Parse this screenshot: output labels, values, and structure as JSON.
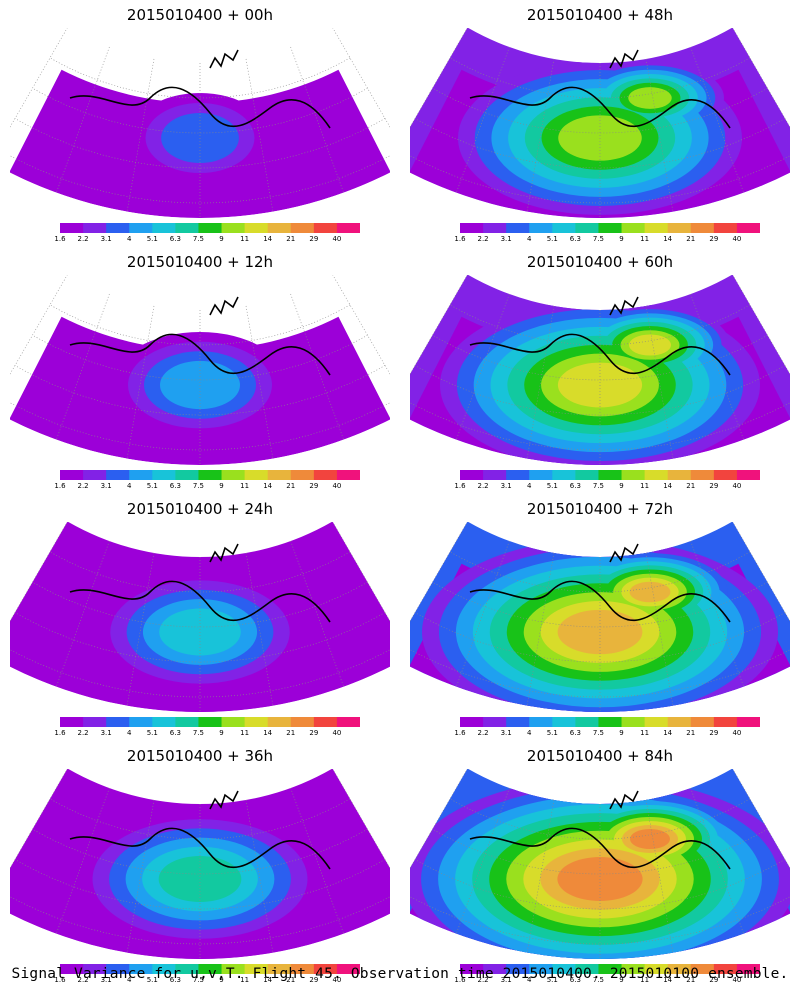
{
  "panels": [
    {
      "title": "2015010400 + 00h",
      "level": 0
    },
    {
      "title": "2015010400 + 48h",
      "level": 4
    },
    {
      "title": "2015010400 + 12h",
      "level": 1
    },
    {
      "title": "2015010400 + 60h",
      "level": 5
    },
    {
      "title": "2015010400 + 24h",
      "level": 2
    },
    {
      "title": "2015010400 + 72h",
      "level": 6
    },
    {
      "title": "2015010400 + 36h",
      "level": 3
    },
    {
      "title": "2015010400 + 84h",
      "level": 7
    }
  ],
  "colorbar": {
    "labels": [
      "1.6",
      "2.2",
      "3.1",
      "4",
      "5.1",
      "6.3",
      "7.5",
      "9",
      "11",
      "14",
      "21",
      "29",
      "40"
    ],
    "colors": [
      "#9c00d8",
      "#8222e6",
      "#2b5ff0",
      "#1fa0f0",
      "#18c3d9",
      "#12c9a0",
      "#18c218",
      "#9ae01e",
      "#d8dc2a",
      "#e8b43c",
      "#ef8a3a",
      "#f2443e",
      "#f0127c"
    ]
  },
  "caption": "Signal Variance for u,v,T. Flight 45. Observation time 2015010400. 2015010100 ensemble."
}
